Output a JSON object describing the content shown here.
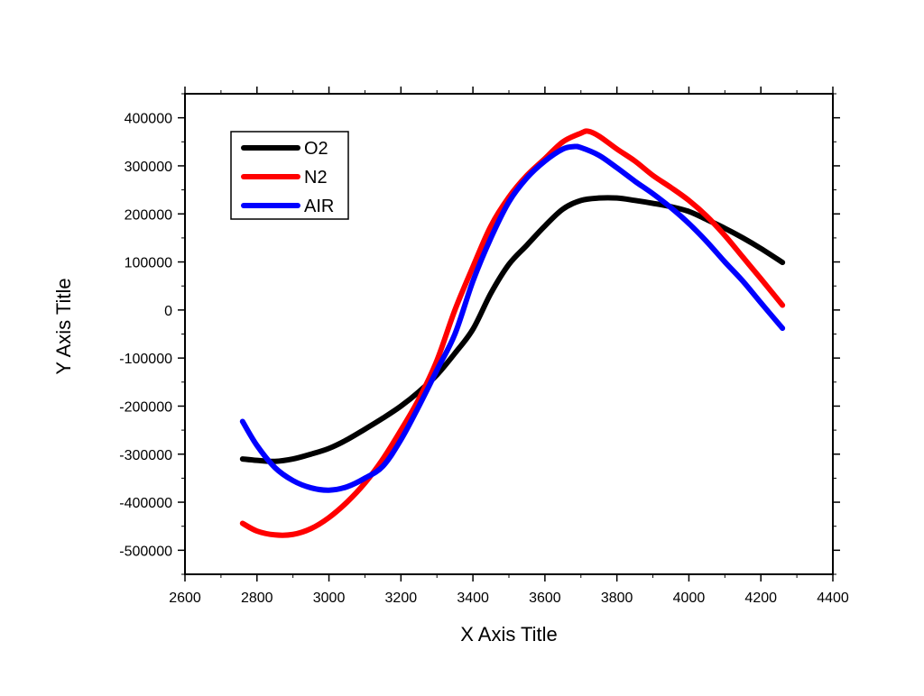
{
  "chart_data": {
    "type": "line",
    "title": "",
    "xlabel": "X Axis Title",
    "ylabel": "Y Axis Title",
    "xlim": [
      2600,
      4400
    ],
    "ylim": [
      -550000,
      450000
    ],
    "x_ticks": [
      2600,
      2800,
      3000,
      3200,
      3400,
      3600,
      3800,
      4000,
      4200,
      4400
    ],
    "y_ticks": [
      -500000,
      -400000,
      -300000,
      -200000,
      -100000,
      0,
      100000,
      200000,
      300000,
      400000
    ],
    "x_tick_labels": [
      "2600",
      "2800",
      "3000",
      "3200",
      "3400",
      "3600",
      "3800",
      "4000",
      "4200",
      "4400"
    ],
    "y_tick_labels": [
      "-500000",
      "-400000",
      "-300000",
      "-200000",
      "-100000",
      "0",
      "100000",
      "200000",
      "300000",
      "400000"
    ],
    "grid": false,
    "legend_position": "top-left",
    "series": [
      {
        "name": "O2",
        "color": "#000000",
        "x": [
          2760,
          2800,
          2850,
          2900,
          2950,
          3000,
          3050,
          3100,
          3150,
          3200,
          3250,
          3300,
          3350,
          3400,
          3450,
          3500,
          3550,
          3600,
          3650,
          3700,
          3750,
          3800,
          3850,
          3900,
          3950,
          4000,
          4050,
          4100,
          4150,
          4200,
          4260
        ],
        "y": [
          -310000,
          -313000,
          -315000,
          -310000,
          -300000,
          -288000,
          -270000,
          -248000,
          -225000,
          -200000,
          -170000,
          -135000,
          -90000,
          -40000,
          35000,
          95000,
          135000,
          175000,
          210000,
          228000,
          233000,
          233000,
          228000,
          222000,
          215000,
          205000,
          188000,
          170000,
          150000,
          128000,
          99000
        ]
      },
      {
        "name": "N2",
        "color": "#ff0000",
        "x": [
          2760,
          2800,
          2850,
          2900,
          2950,
          3000,
          3050,
          3100,
          3150,
          3200,
          3250,
          3300,
          3350,
          3400,
          3450,
          3500,
          3550,
          3600,
          3650,
          3700,
          3720,
          3750,
          3800,
          3850,
          3900,
          3950,
          4000,
          4050,
          4100,
          4150,
          4200,
          4260
        ],
        "y": [
          -444000,
          -460000,
          -468000,
          -467000,
          -455000,
          -432000,
          -400000,
          -360000,
          -310000,
          -250000,
          -185000,
          -105000,
          0,
          90000,
          175000,
          235000,
          280000,
          315000,
          350000,
          368000,
          372000,
          362000,
          335000,
          310000,
          280000,
          255000,
          228000,
          195000,
          155000,
          110000,
          65000,
          10000
        ]
      },
      {
        "name": "AIR",
        "color": "#0000ff",
        "x": [
          2760,
          2800,
          2850,
          2900,
          2950,
          3000,
          3050,
          3100,
          3150,
          3200,
          3250,
          3300,
          3350,
          3400,
          3450,
          3500,
          3550,
          3600,
          3650,
          3680,
          3700,
          3750,
          3800,
          3850,
          3900,
          3950,
          4000,
          4050,
          4100,
          4150,
          4200,
          4260
        ],
        "y": [
          -232000,
          -282000,
          -328000,
          -355000,
          -370000,
          -375000,
          -368000,
          -350000,
          -325000,
          -270000,
          -200000,
          -125000,
          -50000,
          60000,
          150000,
          225000,
          275000,
          310000,
          335000,
          340000,
          338000,
          322000,
          296000,
          268000,
          242000,
          213000,
          180000,
          142000,
          100000,
          60000,
          15000,
          -38000
        ]
      }
    ]
  }
}
